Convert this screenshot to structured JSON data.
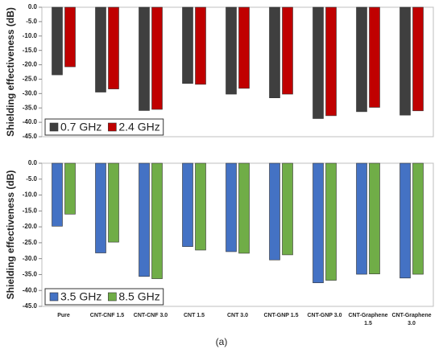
{
  "caption": "(a)",
  "chart_data": [
    {
      "type": "bar",
      "ylabel": "Shielding effectiveness (dB)",
      "legend": "lower left",
      "categories": [
        null,
        null,
        null,
        null,
        null,
        null,
        null,
        null,
        null
      ],
      "ylim": [
        0,
        -45
      ],
      "yticks": [
        {
          "value": 0,
          "label": "0.0"
        },
        {
          "value": -5,
          "label": "-5.0"
        },
        {
          "value": -10,
          "label": "-10.0"
        },
        {
          "value": -15,
          "label": "-15.0"
        },
        {
          "value": -20,
          "label": "-20.0"
        },
        {
          "value": -25,
          "label": "-25.0"
        },
        {
          "value": -30,
          "label": "-30.0"
        },
        {
          "value": -35,
          "label": "-35.0"
        },
        {
          "value": -40,
          "label": "-40.0"
        },
        {
          "value": -45,
          "label": "-45.0"
        }
      ],
      "series": [
        {
          "name": "0.7 GHz",
          "color": "#3f3f3f",
          "values": [
            -23.5,
            -29.5,
            -35.9,
            -26.5,
            -30.2,
            -31.5,
            -38.7,
            -36.3,
            -37.5
          ]
        },
        {
          "name": "2.4 GHz",
          "color": "#c00000",
          "values": [
            -20.7,
            -28.4,
            -35.5,
            -26.8,
            -28.2,
            -30.2,
            -37.7,
            -34.8,
            -36.0
          ]
        }
      ]
    },
    {
      "type": "bar",
      "ylabel": "Shielding effectiveness (dB)",
      "legend": "lower left",
      "categories": [
        "Pure",
        "CNT-CNF 1.5",
        "CNT-CNF 3.0",
        "CNT 1.5",
        "CNT 3.0",
        "CNT-GNP 1.5",
        "CNT-GNP 3.0",
        "CNT-Graphene 1.5",
        "CNT-Graphene 3.0"
      ],
      "ylim": [
        0,
        -45
      ],
      "yticks": [
        {
          "value": 0,
          "label": "0.0"
        },
        {
          "value": -5,
          "label": "-5.0"
        },
        {
          "value": -10,
          "label": "-10.0"
        },
        {
          "value": -15,
          "label": "-15.0"
        },
        {
          "value": -20,
          "label": "-20.0"
        },
        {
          "value": -25,
          "label": "-25.0"
        },
        {
          "value": -30,
          "label": "-30.0"
        },
        {
          "value": -35,
          "label": "-35.0"
        },
        {
          "value": -40,
          "label": "-40.0"
        },
        {
          "value": -45,
          "label": "-45.0"
        }
      ],
      "series": [
        {
          "name": "3.5 GHz",
          "color": "#4472c4",
          "values": [
            -19.8,
            -28.2,
            -35.6,
            -26.2,
            -27.8,
            -30.4,
            -37.6,
            -34.9,
            -36.1
          ]
        },
        {
          "name": "8.5 GHz",
          "color": "#70ad47",
          "values": [
            -16.0,
            -24.8,
            -36.3,
            -27.3,
            -28.3,
            -28.8,
            -36.8,
            -34.8,
            -34.9
          ]
        }
      ]
    }
  ]
}
